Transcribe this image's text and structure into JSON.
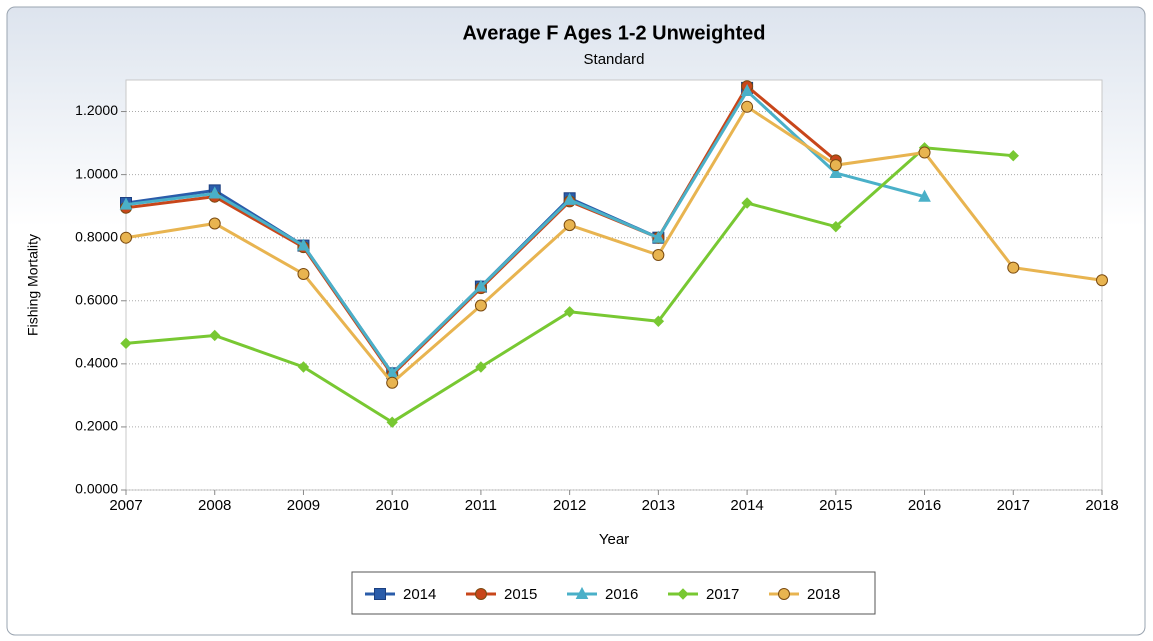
{
  "chart_data": {
    "type": "line",
    "title": "Average F Ages 1-2 Unweighted",
    "subtitle": "Standard",
    "x_label": "Year",
    "y_label": "Fishing Mortality",
    "x": [
      2007,
      2008,
      2009,
      2010,
      2011,
      2012,
      2013,
      2014,
      2015,
      2016,
      2017,
      2018
    ],
    "xlim": [
      2007,
      2018
    ],
    "xticks": [
      2007,
      2008,
      2009,
      2010,
      2011,
      2012,
      2013,
      2014,
      2015,
      2016,
      2017,
      2018
    ],
    "ylim": [
      0,
      1.3
    ],
    "yticks": [
      {
        "value": 0,
        "label": "0.0000"
      },
      {
        "value": 0.2,
        "label": "0.2000"
      },
      {
        "value": 0.4,
        "label": "0.4000"
      },
      {
        "value": 0.6,
        "label": "0.6000"
      },
      {
        "value": 0.8,
        "label": "0.8000"
      },
      {
        "value": 1,
        "label": "1.0000"
      },
      {
        "value": 1.2,
        "label": "1.2000"
      }
    ],
    "grid": true,
    "legend": "bottom",
    "series": [
      {
        "name": "2014",
        "color": "#2a5caa",
        "marker": "square",
        "values": [
          0.91,
          0.95,
          0.775,
          0.37,
          0.645,
          0.925,
          0.8,
          1.275,
          null,
          null,
          null,
          null
        ]
      },
      {
        "name": "2015",
        "color": "#c8461a",
        "marker": "circle",
        "values": [
          0.895,
          0.93,
          0.77,
          0.365,
          0.64,
          0.915,
          0.8,
          1.28,
          1.045,
          null,
          null,
          null
        ]
      },
      {
        "name": "2016",
        "color": "#4ab0c8",
        "marker": "triangle",
        "values": [
          0.905,
          0.94,
          0.775,
          0.37,
          0.645,
          0.92,
          0.8,
          1.265,
          1.005,
          0.93,
          null,
          null
        ]
      },
      {
        "name": "2017",
        "color": "#78c832",
        "marker": "diamond",
        "values": [
          0.465,
          0.49,
          0.39,
          0.215,
          0.39,
          0.565,
          0.535,
          0.91,
          0.835,
          1.085,
          1.06,
          null
        ]
      },
      {
        "name": "2018",
        "color": "#e8b450",
        "marker": "circle",
        "values": [
          0.8,
          0.845,
          0.685,
          0.34,
          0.585,
          0.84,
          0.745,
          1.215,
          1.03,
          1.07,
          0.705,
          0.665
        ]
      }
    ]
  }
}
